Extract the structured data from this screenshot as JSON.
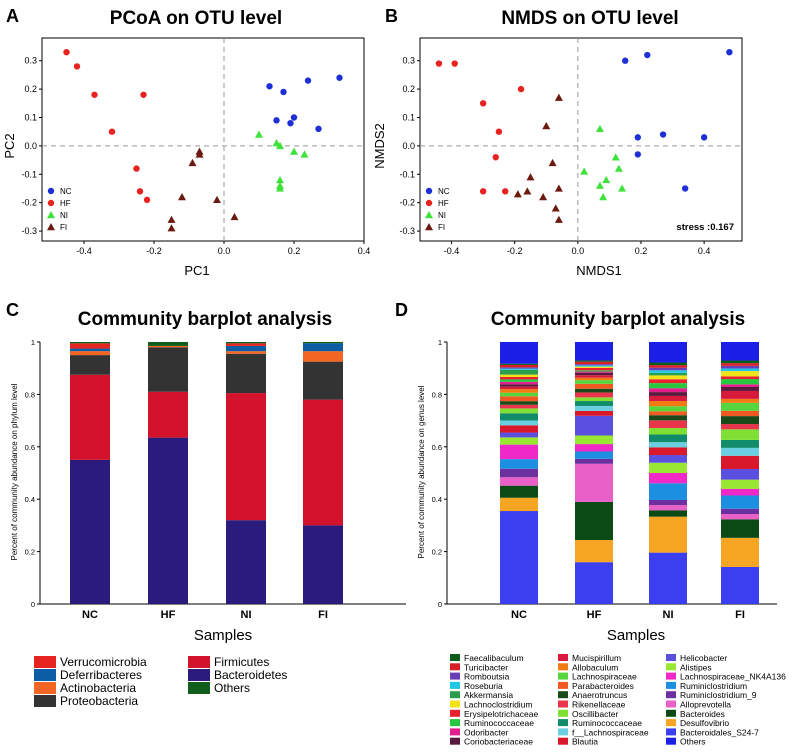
{
  "panel_labels": [
    "A",
    "B",
    "C",
    "D"
  ],
  "chart_data": [
    {
      "type": "scatter",
      "title": "PCoA on OTU level",
      "xlabel": "PC1",
      "ylabel": "PC2",
      "xlim": [
        -0.52,
        0.4
      ],
      "ylim": [
        -0.335,
        0.38
      ],
      "xticks": [
        "-0.4",
        "-0.2",
        "0.0",
        "0.2",
        "0.4"
      ],
      "xtick_values": [
        -0.4,
        -0.2,
        0.0,
        0.2,
        0.4
      ],
      "yticks": [
        "0.3",
        "0.2",
        "0.1",
        "0.0",
        "-0.1",
        "-0.2",
        "-0.3"
      ],
      "ytick_values": [
        0.3,
        0.2,
        0.1,
        0.0,
        -0.1,
        -0.2,
        -0.3
      ],
      "legend": [
        "NC",
        "HF",
        "NI",
        "FI"
      ],
      "series": [
        {
          "name": "NC",
          "color": "#1f2fd6",
          "marker": "circle",
          "points": [
            [
              0.13,
              0.21
            ],
            [
              0.17,
              0.19
            ],
            [
              0.24,
              0.23
            ],
            [
              0.33,
              0.24
            ],
            [
              0.15,
              0.09
            ],
            [
              0.2,
              0.1
            ],
            [
              0.19,
              0.08
            ],
            [
              0.27,
              0.06
            ]
          ]
        },
        {
          "name": "HF",
          "color": "#e8231f",
          "marker": "circle",
          "points": [
            [
              -0.45,
              0.33
            ],
            [
              -0.42,
              0.28
            ],
            [
              -0.37,
              0.18
            ],
            [
              -0.23,
              0.18
            ],
            [
              -0.32,
              0.05
            ],
            [
              -0.25,
              -0.08
            ],
            [
              -0.24,
              -0.16
            ],
            [
              -0.22,
              -0.19
            ]
          ]
        },
        {
          "name": "NI",
          "color": "#3fe23a",
          "marker": "triangle",
          "points": [
            [
              0.1,
              0.04
            ],
            [
              0.15,
              0.01
            ],
            [
              0.16,
              0.0
            ],
            [
              0.2,
              -0.02
            ],
            [
              0.23,
              -0.03
            ],
            [
              0.16,
              -0.12
            ],
            [
              0.16,
              -0.14
            ],
            [
              0.16,
              -0.15
            ]
          ]
        },
        {
          "name": "FI",
          "color": "#6b1a10",
          "marker": "triangle",
          "points": [
            [
              -0.07,
              -0.02
            ],
            [
              -0.07,
              -0.03
            ],
            [
              -0.09,
              -0.06
            ],
            [
              -0.12,
              -0.18
            ],
            [
              -0.02,
              -0.19
            ],
            [
              0.03,
              -0.25
            ],
            [
              -0.15,
              -0.26
            ],
            [
              -0.15,
              -0.29
            ]
          ]
        }
      ]
    },
    {
      "type": "scatter",
      "title": "NMDS on OTU level",
      "xlabel": "NMDS1",
      "ylabel": "NMDS2",
      "annotation": "stress :0.167",
      "xlim": [
        -0.5,
        0.52
      ],
      "ylim": [
        -0.335,
        0.38
      ],
      "xticks": [
        "-0.4",
        "-0.2",
        "0.0",
        "0.2",
        "0.4"
      ],
      "xtick_values": [
        -0.4,
        -0.2,
        0.0,
        0.2,
        0.4
      ],
      "yticks": [
        "0.3",
        "0.2",
        "0.1",
        "0.0",
        "-0.1",
        "-0.2",
        "-0.3"
      ],
      "ytick_values": [
        0.3,
        0.2,
        0.1,
        0.0,
        -0.1,
        -0.2,
        -0.3
      ],
      "legend": [
        "NC",
        "HF",
        "NI",
        "FI"
      ],
      "series": [
        {
          "name": "NC",
          "color": "#1f2fd6",
          "marker": "circle",
          "points": [
            [
              0.48,
              0.33
            ],
            [
              0.22,
              0.32
            ],
            [
              0.15,
              0.3
            ],
            [
              0.27,
              0.04
            ],
            [
              0.19,
              0.03
            ],
            [
              0.4,
              0.03
            ],
            [
              0.19,
              -0.03
            ],
            [
              0.34,
              -0.15
            ]
          ]
        },
        {
          "name": "HF",
          "color": "#e8231f",
          "marker": "circle",
          "points": [
            [
              -0.44,
              0.29
            ],
            [
              -0.39,
              0.29
            ],
            [
              -0.18,
              0.2
            ],
            [
              -0.3,
              0.15
            ],
            [
              -0.25,
              0.05
            ],
            [
              -0.26,
              -0.04
            ],
            [
              -0.3,
              -0.16
            ],
            [
              -0.23,
              -0.16
            ]
          ]
        },
        {
          "name": "NI",
          "color": "#3fe23a",
          "marker": "triangle",
          "points": [
            [
              0.07,
              0.06
            ],
            [
              0.12,
              -0.04
            ],
            [
              0.13,
              -0.08
            ],
            [
              0.02,
              -0.09
            ],
            [
              0.09,
              -0.12
            ],
            [
              0.07,
              -0.14
            ],
            [
              0.14,
              -0.15
            ],
            [
              0.08,
              -0.18
            ]
          ]
        },
        {
          "name": "FI",
          "color": "#6b1a10",
          "marker": "triangle",
          "points": [
            [
              -0.06,
              0.17
            ],
            [
              -0.1,
              0.07
            ],
            [
              -0.08,
              -0.06
            ],
            [
              -0.15,
              -0.11
            ],
            [
              -0.06,
              -0.15
            ],
            [
              -0.16,
              -0.16
            ],
            [
              -0.19,
              -0.17
            ],
            [
              -0.11,
              -0.18
            ],
            [
              -0.07,
              -0.22
            ],
            [
              -0.06,
              -0.26
            ]
          ]
        }
      ]
    },
    {
      "type": "bar",
      "stacked": true,
      "title": "Community barplot analysis",
      "xlabel": "Samples",
      "ylabel": "Percent of community abundance on phylum level",
      "ylim": [
        0,
        1
      ],
      "yticks": [
        "0",
        "0.2",
        "0.4",
        "0.6",
        "0.8",
        "1"
      ],
      "ytick_values": [
        0,
        0.2,
        0.4,
        0.6,
        0.8,
        1.0
      ],
      "categories": [
        "NC",
        "HF",
        "NI",
        "FI"
      ],
      "legend_col1": [
        "Verrucomicrobia",
        "Deferribacteres",
        "Actinobacteria",
        "Proteobacteria"
      ],
      "legend_col2": [
        "Firmicutes",
        "Bacteroidetes",
        "Others"
      ],
      "series": [
        {
          "name": "Bacteroidetes",
          "color": "#2a1b7c",
          "values": [
            0.55,
            0.635,
            0.32,
            0.3
          ]
        },
        {
          "name": "Firmicutes",
          "color": "#d3122b",
          "values": [
            0.325,
            0.175,
            0.485,
            0.48
          ]
        },
        {
          "name": "Proteobacteria",
          "color": "#333333",
          "values": [
            0.075,
            0.17,
            0.15,
            0.145
          ]
        },
        {
          "name": "Actinobacteria",
          "color": "#f26522",
          "values": [
            0.015,
            0.005,
            0.01,
            0.04
          ]
        },
        {
          "name": "Deferribacteres",
          "color": "#0d5ca6",
          "values": [
            0.01,
            0.0,
            0.02,
            0.03
          ]
        },
        {
          "name": "Verrucomicrobia",
          "color": "#e52420",
          "values": [
            0.02,
            0.0,
            0.01,
            0.0
          ]
        },
        {
          "name": "Others",
          "color": "#115e1c",
          "values": [
            0.005,
            0.015,
            0.005,
            0.005
          ]
        }
      ]
    },
    {
      "type": "bar",
      "stacked": true,
      "title": "Community barplot analysis",
      "xlabel": "Samples",
      "ylabel": "Percent of community abundance on genus level",
      "ylim": [
        0,
        1
      ],
      "yticks": [
        "0",
        "0.2",
        "0.4",
        "0.6",
        "0.8",
        "1"
      ],
      "ytick_values": [
        0,
        0.2,
        0.4,
        0.6,
        0.8,
        1.0
      ],
      "categories": [
        "NC",
        "HF",
        "NI",
        "FI"
      ],
      "legend_col1": [
        "Faecalibaculum",
        "Turicibacter",
        "Romboutsia",
        "Roseburia",
        "Akkermansia",
        "Lachnoclostridium",
        "Erysipelotrichaceae",
        "Ruminococcaceae",
        "Odoribacter",
        "Coriobacteriaceae"
      ],
      "legend_col2": [
        "Mucispirillum",
        "Allobaculum",
        "Lachnospiraceae",
        "Parabacteroides",
        "Anaerotruncus",
        "Rikenellaceae",
        "Oscillibacter",
        "Ruminococcaceae",
        "f__Lachnospiraceae",
        "Blautia"
      ],
      "legend_col3": [
        "Helicobacter",
        "Alistipes",
        "Lachnospiraceae_NK4A136",
        "Ruminiclostridium",
        "Ruminiclostridium_9",
        "Alloprevotella",
        "Bacteroides",
        "Desulfovibrio",
        "Bacteroidales_S24-7",
        "Others"
      ],
      "legend_colors": {
        "col1": [
          "#0b5b1c",
          "#d91f26",
          "#6a3eb5",
          "#20c7e8",
          "#2a9e4e",
          "#f2e318",
          "#e82030",
          "#27c840",
          "#e11e8c",
          "#5a1a3e"
        ],
        "col2": [
          "#d81b3c",
          "#f07c12",
          "#56d63c",
          "#f05a22",
          "#1b4a1a",
          "#e8354b",
          "#7fe033",
          "#118c6a",
          "#6acfe0",
          "#d9192b"
        ],
        "col3": [
          "#5b4fe0",
          "#99e633",
          "#f028c8",
          "#1d8fe0",
          "#6b2fa0",
          "#e860c8",
          "#0b4a14",
          "#f6a623",
          "#3b3ff0",
          "#1c1fe6"
        ]
      },
      "series": [
        {
          "name": "Bacteroidales_S24-7",
          "color": "#3b3ff0",
          "values": [
            0.385,
            0.17,
            0.2,
            0.14
          ]
        },
        {
          "name": "Desulfovibrio",
          "color": "#f6a623",
          "values": [
            0.055,
            0.09,
            0.14,
            0.11
          ]
        },
        {
          "name": "Bacteroides",
          "color": "#0b4a14",
          "values": [
            0.05,
            0.155,
            0.025,
            0.07
          ]
        },
        {
          "name": "Alloprevotella",
          "color": "#e860c8",
          "values": [
            0.035,
            0.155,
            0.02,
            0.02
          ]
        },
        {
          "name": "Ruminiclostridium_9",
          "color": "#6b2fa0",
          "values": [
            0.035,
            0.02,
            0.02,
            0.02
          ]
        },
        {
          "name": "Ruminiclostridium",
          "color": "#1d8fe0",
          "values": [
            0.04,
            0.03,
            0.065,
            0.05
          ]
        },
        {
          "name": "Lachnospiraceae_NK4A136",
          "color": "#f028c8",
          "values": [
            0.06,
            0.03,
            0.04,
            0.025
          ]
        },
        {
          "name": "Alistipes",
          "color": "#99e633",
          "values": [
            0.03,
            0.035,
            0.04,
            0.035
          ]
        },
        {
          "name": "Helicobacter",
          "color": "#5b4fe0",
          "values": [
            0.02,
            0.08,
            0.03,
            0.04
          ]
        },
        {
          "name": "Blautia",
          "color": "#d9192b",
          "values": [
            0.03,
            0.02,
            0.03,
            0.05
          ]
        },
        {
          "name": "f__Lachnospiraceae",
          "color": "#6acfe0",
          "values": [
            0.02,
            0.02,
            0.02,
            0.03
          ]
        },
        {
          "name": "Ruminococcaceae",
          "color": "#118c6a",
          "values": [
            0.03,
            0.02,
            0.03,
            0.03
          ]
        },
        {
          "name": "Oscillibacter",
          "color": "#7fe033",
          "values": [
            0.02,
            0.015,
            0.025,
            0.04
          ]
        },
        {
          "name": "Rikenellaceae",
          "color": "#e8354b",
          "values": [
            0.015,
            0.02,
            0.03,
            0.02
          ]
        },
        {
          "name": "Anaerotruncus",
          "color": "#1b4a1a",
          "values": [
            0.015,
            0.015,
            0.02,
            0.03
          ]
        },
        {
          "name": "Parabacteroides",
          "color": "#f05a22",
          "values": [
            0.02,
            0.02,
            0.015,
            0.02
          ]
        },
        {
          "name": "Lachnospiraceae",
          "color": "#56d63c",
          "values": [
            0.015,
            0.015,
            0.02,
            0.03
          ]
        },
        {
          "name": "Allobaculum",
          "color": "#f07c12",
          "values": [
            0.015,
            0.01,
            0.02,
            0.015
          ]
        },
        {
          "name": "Mucispirillum",
          "color": "#d81b3c",
          "values": [
            0.01,
            0.01,
            0.02,
            0.03
          ]
        },
        {
          "name": "Coriobacteriaceae",
          "color": "#5a1a3e",
          "values": [
            0.01,
            0.01,
            0.015,
            0.015
          ]
        },
        {
          "name": "Odoribacter",
          "color": "#e11e8c",
          "values": [
            0.01,
            0.005,
            0.015,
            0.01
          ]
        },
        {
          "name": "Ruminococcaceae",
          "color": "#27c840",
          "values": [
            0.01,
            0.005,
            0.02,
            0.02
          ]
        },
        {
          "name": "Erysipelotrichaceae",
          "color": "#e82030",
          "values": [
            0.01,
            0.01,
            0.015,
            0.01
          ]
        },
        {
          "name": "Lachnoclostridium",
          "color": "#f2e318",
          "values": [
            0.01,
            0.005,
            0.015,
            0.02
          ]
        },
        {
          "name": "Akkermansia",
          "color": "#2a9e4e",
          "values": [
            0.02,
            0.0,
            0.01,
            0.0
          ]
        },
        {
          "name": "Roseburia",
          "color": "#20c7e8",
          "values": [
            0.005,
            0.005,
            0.01,
            0.01
          ]
        },
        {
          "name": "Romboutsia",
          "color": "#6a3eb5",
          "values": [
            0.005,
            0.005,
            0.01,
            0.01
          ]
        },
        {
          "name": "Turicibacter",
          "color": "#d91f26",
          "values": [
            0.01,
            0.01,
            0.01,
            0.01
          ]
        },
        {
          "name": "Faecalibaculum",
          "color": "#0b5b1c",
          "values": [
            0.005,
            0.005,
            0.01,
            0.01
          ]
        },
        {
          "name": "Others",
          "color": "#1c1fe6",
          "values": [
            0.09,
            0.075,
            0.08,
            0.07
          ]
        }
      ]
    }
  ]
}
